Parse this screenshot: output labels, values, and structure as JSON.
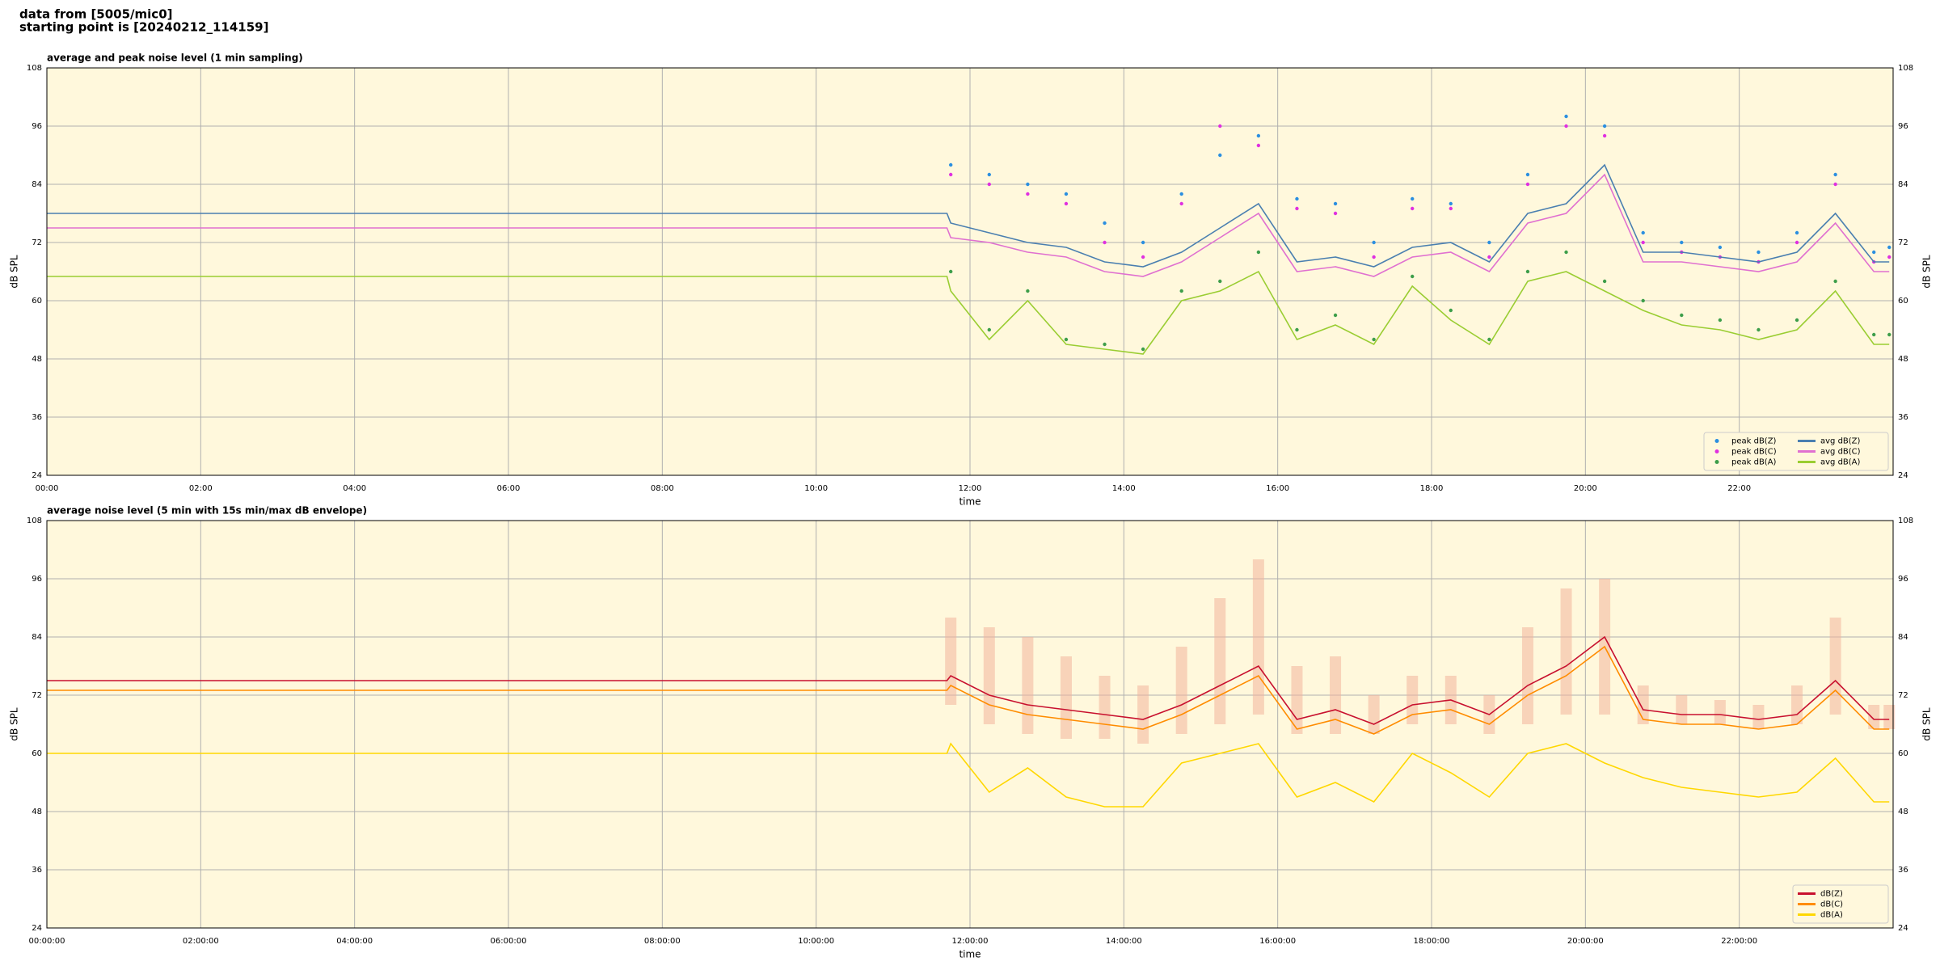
{
  "header": {
    "line1": "data from [5005/mic0]",
    "line2": "starting point is [20240212_114159]"
  },
  "chart_data": [
    {
      "type": "line",
      "title": "average and peak noise level (1 min sampling)",
      "xlabel": "time",
      "ylabel": "dB SPL",
      "x": [
        0,
        11.7,
        11.75,
        12.25,
        12.75,
        13.25,
        13.75,
        14.25,
        14.75,
        15.25,
        15.75,
        16.25,
        16.75,
        17.25,
        17.75,
        18.25,
        18.75,
        19.25,
        19.75,
        20.25,
        20.75,
        21.25,
        21.75,
        22.25,
        22.75,
        23.25,
        23.75,
        23.95
      ],
      "xlim": [
        0,
        24
      ],
      "xticks": [
        {
          "value": 0,
          "label": "00:00"
        },
        {
          "value": 2,
          "label": "02:00"
        },
        {
          "value": 4,
          "label": "04:00"
        },
        {
          "value": 6,
          "label": "06:00"
        },
        {
          "value": 8,
          "label": "08:00"
        },
        {
          "value": 10,
          "label": "10:00"
        },
        {
          "value": 12,
          "label": "12:00"
        },
        {
          "value": 14,
          "label": "14:00"
        },
        {
          "value": 16,
          "label": "16:00"
        },
        {
          "value": 18,
          "label": "18:00"
        },
        {
          "value": 20,
          "label": "20:00"
        },
        {
          "value": 22,
          "label": "22:00"
        }
      ],
      "ylim": [
        24,
        108
      ],
      "yticks": [
        24,
        36,
        48,
        60,
        72,
        84,
        96,
        108
      ],
      "grid": true,
      "legend": "lower right",
      "legend_columns": 2,
      "series": [
        {
          "name": "peak dB(Z)",
          "kind": "scatter",
          "color": "#2b8fe0",
          "values": [
            null,
            null,
            88,
            86,
            84,
            82,
            76,
            72,
            82,
            90,
            94,
            81,
            80,
            72,
            81,
            80,
            72,
            86,
            98,
            96,
            74,
            72,
            71,
            70,
            74,
            86,
            70,
            71
          ]
        },
        {
          "name": "peak dB(C)",
          "kind": "scatter",
          "color": "#e030e0",
          "values": [
            null,
            null,
            86,
            84,
            82,
            80,
            72,
            69,
            80,
            96,
            92,
            79,
            78,
            69,
            79,
            79,
            69,
            84,
            96,
            94,
            72,
            70,
            69,
            68,
            72,
            84,
            68,
            69
          ]
        },
        {
          "name": "peak dB(A)",
          "kind": "scatter",
          "color": "#3d9e4a",
          "values": [
            null,
            null,
            66,
            54,
            62,
            52,
            51,
            50,
            62,
            64,
            70,
            54,
            57,
            52,
            65,
            58,
            52,
            66,
            70,
            64,
            60,
            57,
            56,
            54,
            56,
            64,
            53,
            53
          ]
        },
        {
          "name": "avg dB(Z)",
          "kind": "line",
          "color": "#4a7fb0",
          "values": [
            78,
            78,
            76,
            74,
            72,
            71,
            68,
            67,
            70,
            75,
            80,
            68,
            69,
            67,
            71,
            72,
            68,
            78,
            80,
            88,
            70,
            70,
            69,
            68,
            70,
            78,
            68,
            68
          ]
        },
        {
          "name": "avg dB(C)",
          "kind": "line",
          "color": "#e070d0",
          "values": [
            75,
            75,
            73,
            72,
            70,
            69,
            66,
            65,
            68,
            73,
            78,
            66,
            67,
            65,
            69,
            70,
            66,
            76,
            78,
            86,
            68,
            68,
            67,
            66,
            68,
            76,
            66,
            66
          ]
        },
        {
          "name": "avg dB(A)",
          "kind": "line",
          "color": "#9acd32",
          "values": [
            65,
            65,
            62,
            52,
            60,
            51,
            50,
            49,
            60,
            62,
            66,
            52,
            55,
            51,
            63,
            56,
            51,
            64,
            66,
            62,
            58,
            55,
            54,
            52,
            54,
            62,
            51,
            51
          ]
        }
      ]
    },
    {
      "type": "line",
      "title": "average noise level (5 min with 15s min/max dB envelope)",
      "xlabel": "time",
      "ylabel": "dB SPL",
      "x": [
        0,
        11.7,
        11.75,
        12.25,
        12.75,
        13.25,
        13.75,
        14.25,
        14.75,
        15.25,
        15.75,
        16.25,
        16.75,
        17.25,
        17.75,
        18.25,
        18.75,
        19.25,
        19.75,
        20.25,
        20.75,
        21.25,
        21.75,
        22.25,
        22.75,
        23.25,
        23.75,
        23.95
      ],
      "xlim": [
        0,
        24
      ],
      "xticks": [
        {
          "value": 0,
          "label": "00:00:00"
        },
        {
          "value": 2,
          "label": "02:00:00"
        },
        {
          "value": 4,
          "label": "04:00:00"
        },
        {
          "value": 6,
          "label": "06:00:00"
        },
        {
          "value": 8,
          "label": "08:00:00"
        },
        {
          "value": 10,
          "label": "10:00:00"
        },
        {
          "value": 12,
          "label": "12:00:00"
        },
        {
          "value": 14,
          "label": "14:00:00"
        },
        {
          "value": 16,
          "label": "16:00:00"
        },
        {
          "value": 18,
          "label": "18:00:00"
        },
        {
          "value": 20,
          "label": "20:00:00"
        },
        {
          "value": 22,
          "label": "22:00:00"
        }
      ],
      "ylim": [
        24,
        108
      ],
      "yticks": [
        24,
        36,
        48,
        60,
        72,
        84,
        96,
        108
      ],
      "grid": true,
      "legend": "lower right",
      "legend_columns": 1,
      "envelope": {
        "color": "#f2b49c",
        "min": [
          null,
          null,
          70,
          66,
          64,
          63,
          63,
          62,
          64,
          66,
          68,
          64,
          64,
          64,
          66,
          66,
          64,
          66,
          68,
          68,
          66,
          66,
          66,
          65,
          66,
          68,
          65,
          65
        ],
        "max": [
          null,
          null,
          88,
          86,
          84,
          80,
          76,
          74,
          82,
          92,
          100,
          78,
          80,
          72,
          76,
          76,
          72,
          86,
          94,
          96,
          74,
          72,
          71,
          70,
          74,
          88,
          70,
          70
        ]
      },
      "series": [
        {
          "name": "dB(Z)",
          "kind": "line",
          "color": "#c8102e",
          "values": [
            75,
            75,
            76,
            72,
            70,
            69,
            68,
            67,
            70,
            74,
            78,
            67,
            69,
            66,
            70,
            71,
            68,
            74,
            78,
            84,
            69,
            68,
            68,
            67,
            68,
            75,
            67,
            67
          ]
        },
        {
          "name": "dB(C)",
          "kind": "line",
          "color": "#ff8c00",
          "values": [
            73,
            73,
            74,
            70,
            68,
            67,
            66,
            65,
            68,
            72,
            76,
            65,
            67,
            64,
            68,
            69,
            66,
            72,
            76,
            82,
            67,
            66,
            66,
            65,
            66,
            73,
            65,
            65
          ]
        },
        {
          "name": "dB(A)",
          "kind": "line",
          "color": "#ffd700",
          "values": [
            60,
            60,
            62,
            52,
            57,
            51,
            49,
            49,
            58,
            60,
            62,
            51,
            54,
            50,
            60,
            56,
            51,
            60,
            62,
            58,
            55,
            53,
            52,
            51,
            52,
            59,
            50,
            50
          ]
        }
      ]
    }
  ]
}
